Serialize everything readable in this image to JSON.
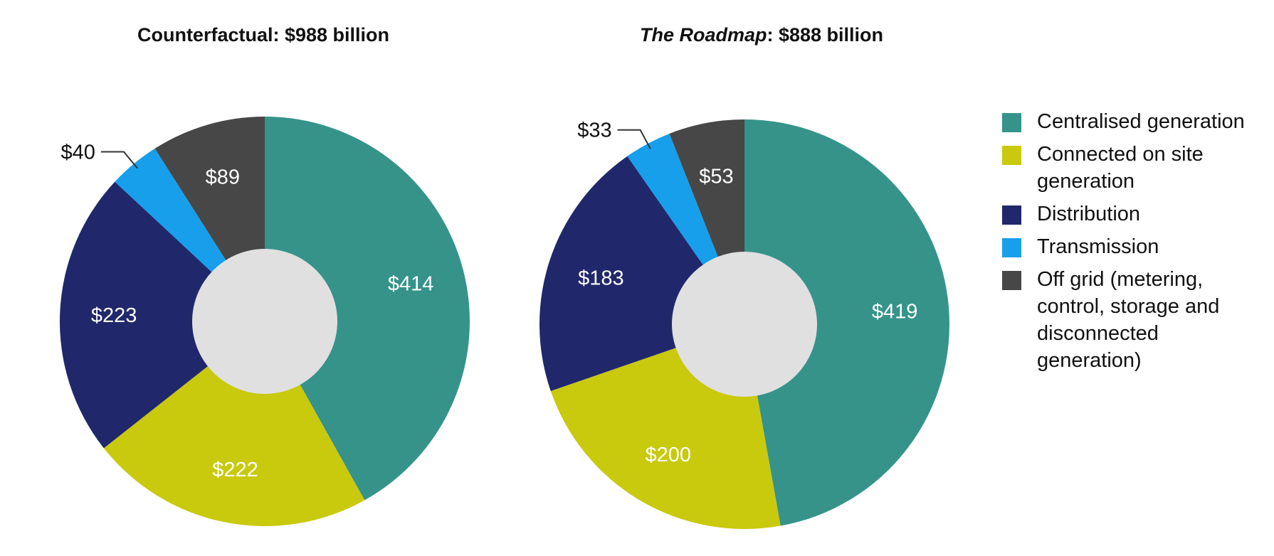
{
  "legend": [
    {
      "label": "Centralised generation",
      "color": "#35938a"
    },
    {
      "label": "Connected on site generation",
      "color": "#c9c90e"
    },
    {
      "label": "Distribution",
      "color": "#20286b"
    },
    {
      "label": "Transmission",
      "color": "#179fec"
    },
    {
      "label": "Off grid (metering, control, storage and disconnected generation)",
      "color": "#474747"
    }
  ],
  "chart_data": [
    {
      "type": "pie",
      "title_prefix": "",
      "title_main": "Counterfactual: $988 billion",
      "categories": [
        "Centralised generation",
        "Connected on site generation",
        "Distribution",
        "Transmission",
        "Off grid (metering, control, storage and disconnected generation)"
      ],
      "values": [
        414,
        222,
        223,
        40,
        89
      ],
      "labels": [
        "$414",
        "$222",
        "$223",
        "$40",
        "$89"
      ],
      "colors": [
        "#35938a",
        "#c9c90e",
        "#20286b",
        "#179fec",
        "#474747"
      ],
      "center_color": "#e0e0e0"
    },
    {
      "type": "pie",
      "title_prefix": "The Roadmap",
      "title_main": ": $888 billion",
      "categories": [
        "Centralised generation",
        "Connected on site generation",
        "Distribution",
        "Transmission",
        "Off grid (metering, control, storage and disconnected generation)"
      ],
      "values": [
        419,
        200,
        183,
        33,
        53
      ],
      "labels": [
        "$419",
        "$200",
        "$183",
        "$33",
        "$53"
      ],
      "colors": [
        "#35938a",
        "#c9c90e",
        "#20286b",
        "#179fec",
        "#474747"
      ],
      "center_color": "#e0e0e0"
    }
  ]
}
